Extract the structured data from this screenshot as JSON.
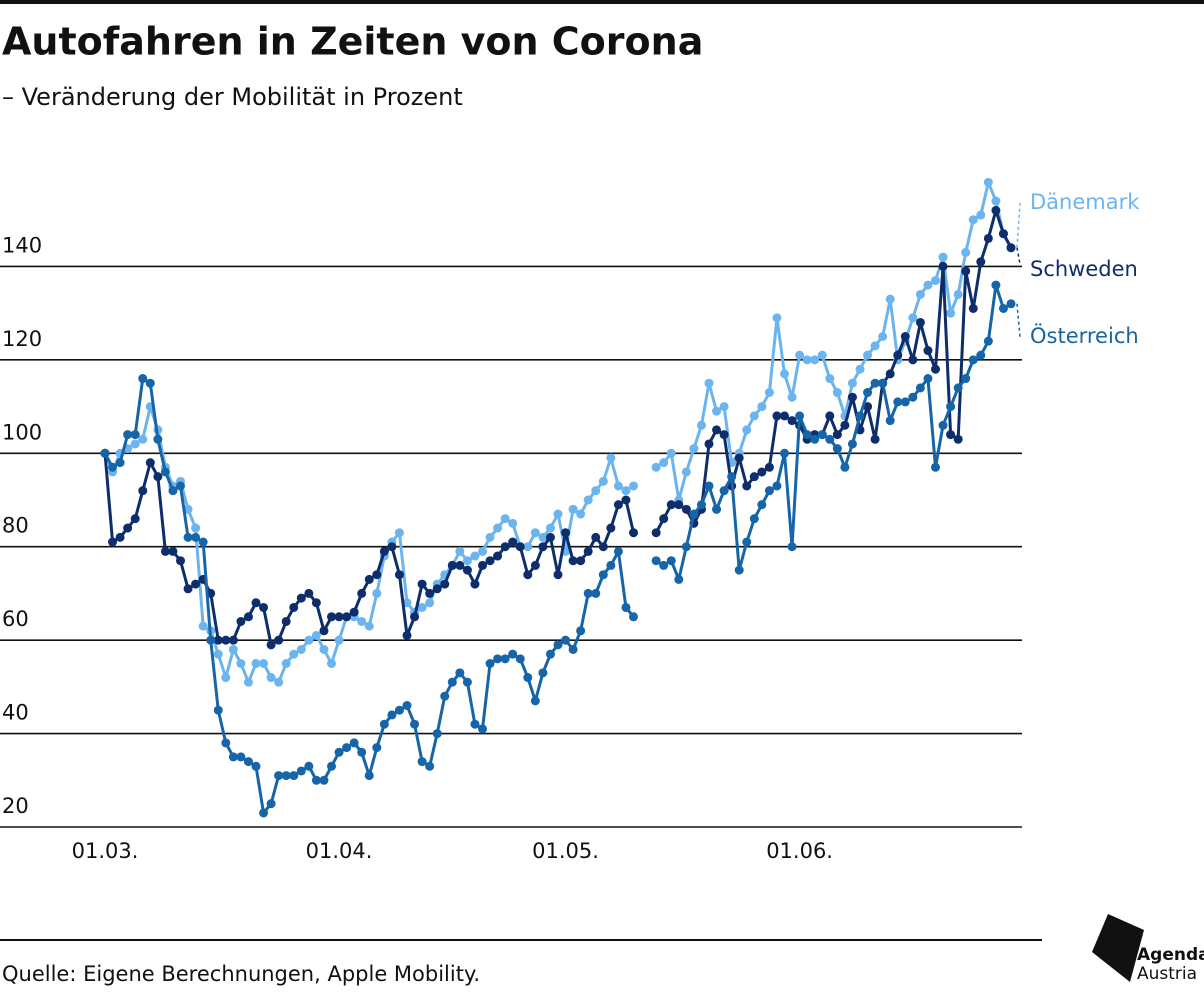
{
  "chart_data": {
    "type": "line",
    "title": "Autofahren in Zeiten von Corona",
    "subtitle": "– Veränderung der Mobilität in Prozent",
    "source": "Quelle: Eigene Berechnungen, Apple Mobility.",
    "logo": [
      "Agenda",
      "Austria"
    ],
    "ylim": [
      20,
      160
    ],
    "yticks": [
      20,
      40,
      60,
      80,
      100,
      120,
      140
    ],
    "grid": true,
    "categories": [
      "01.03.",
      "02.03.",
      "03.03.",
      "04.03.",
      "05.03.",
      "06.03.",
      "07.03.",
      "08.03.",
      "09.03.",
      "10.03.",
      "11.03.",
      "12.03.",
      "13.03.",
      "14.03.",
      "15.03.",
      "16.03.",
      "17.03.",
      "18.03.",
      "19.03.",
      "20.03.",
      "21.03.",
      "22.03.",
      "23.03.",
      "24.03.",
      "25.03.",
      "26.03.",
      "27.03.",
      "28.03.",
      "29.03.",
      "30.03.",
      "31.03.",
      "01.04.",
      "02.04.",
      "03.04.",
      "04.04.",
      "05.04.",
      "06.04.",
      "07.04.",
      "08.04.",
      "09.04.",
      "10.04.",
      "11.04.",
      "12.04.",
      "13.04.",
      "14.04.",
      "15.04.",
      "16.04.",
      "17.04.",
      "18.04.",
      "19.04.",
      "20.04.",
      "21.04.",
      "22.04.",
      "23.04.",
      "24.04.",
      "25.04.",
      "26.04.",
      "27.04.",
      "28.04.",
      "29.04.",
      "30.04.",
      "01.05.",
      "02.05.",
      "03.05.",
      "04.05.",
      "05.05.",
      "06.05.",
      "07.05.",
      "08.05.",
      "09.05.",
      "10.05.",
      "11.05.",
      "12.05.",
      "13.05.",
      "14.05.",
      "15.05.",
      "16.05.",
      "17.05.",
      "18.05.",
      "19.05.",
      "20.05.",
      "21.05.",
      "22.05.",
      "23.05.",
      "24.05.",
      "25.05.",
      "26.05.",
      "27.05.",
      "28.05.",
      "29.05.",
      "30.05.",
      "31.05.",
      "01.06.",
      "02.06.",
      "03.06.",
      "04.06.",
      "05.06.",
      "06.06.",
      "07.06.",
      "08.06.",
      "09.06.",
      "10.06.",
      "11.06.",
      "12.06.",
      "13.06.",
      "14.06.",
      "15.06.",
      "16.06.",
      "17.06.",
      "18.06.",
      "19.06.",
      "20.06.",
      "21.06.",
      "22.06.",
      "23.06.",
      "24.06.",
      "25.06.",
      "26.06.",
      "27.06.",
      "28.06.",
      "29.06."
    ],
    "xticks": [
      "01.03.",
      "01.04.",
      "01.05.",
      "01.06."
    ],
    "series": [
      {
        "name": "Dänemark",
        "color": "#6cb4ee",
        "values": [
          100,
          96,
          100,
          101,
          102,
          103,
          110,
          105,
          97,
          93,
          94,
          88,
          84,
          63,
          62,
          57,
          52,
          58,
          55,
          51,
          55,
          55,
          52,
          51,
          55,
          57,
          58,
          60,
          61,
          58,
          55,
          60,
          65,
          65,
          64,
          63,
          70,
          78,
          81,
          83,
          68,
          66,
          67,
          68,
          72,
          74,
          76,
          79,
          77,
          78,
          79,
          82,
          84,
          86,
          85,
          80,
          80,
          83,
          82,
          84,
          87,
          79,
          88,
          87,
          90,
          92,
          94,
          99,
          93,
          92,
          93,
          null,
          null,
          97,
          98,
          100,
          90,
          96,
          101,
          106,
          115,
          109,
          110,
          98,
          100,
          105,
          108,
          110,
          113,
          129,
          117,
          112,
          121,
          120,
          120,
          121,
          116,
          113,
          108,
          115,
          118,
          121,
          123,
          125,
          133,
          120,
          124,
          129,
          134,
          136,
          137,
          142,
          130,
          134,
          143,
          150,
          151,
          158,
          154,
          147,
          144
        ]
      },
      {
        "name": "Schweden",
        "color": "#0d2d6b",
        "values": [
          100,
          81,
          82,
          84,
          86,
          92,
          98,
          95,
          79,
          79,
          77,
          71,
          72,
          73,
          70,
          60,
          60,
          60,
          64,
          65,
          68,
          67,
          59,
          60,
          64,
          67,
          69,
          70,
          68,
          62,
          65,
          65,
          65,
          66,
          70,
          73,
          74,
          79,
          80,
          74,
          61,
          65,
          72,
          70,
          71,
          72,
          76,
          76,
          75,
          72,
          76,
          77,
          78,
          80,
          81,
          80,
          74,
          76,
          80,
          82,
          74,
          83,
          77,
          77,
          79,
          82,
          80,
          84,
          89,
          90,
          83,
          null,
          null,
          83,
          86,
          89,
          89,
          88,
          85,
          88,
          102,
          105,
          104,
          93,
          99,
          93,
          95,
          96,
          97,
          108,
          108,
          107,
          106,
          103,
          104,
          104,
          108,
          104,
          106,
          112,
          105,
          110,
          103,
          115,
          117,
          121,
          125,
          120,
          128,
          122,
          118,
          140,
          104,
          103,
          139,
          131,
          141,
          146,
          152,
          147,
          144
        ]
      },
      {
        "name": "Österreich",
        "color": "#1565a8",
        "values": [
          100,
          97,
          98,
          104,
          104,
          116,
          115,
          103,
          96,
          92,
          93,
          82,
          82,
          81,
          60,
          45,
          38,
          35,
          35,
          34,
          33,
          23,
          25,
          31,
          31,
          31,
          32,
          33,
          30,
          30,
          33,
          36,
          37,
          38,
          36,
          31,
          37,
          42,
          44,
          45,
          46,
          42,
          34,
          33,
          40,
          48,
          51,
          53,
          51,
          42,
          41,
          55,
          56,
          56,
          57,
          56,
          52,
          47,
          53,
          57,
          59,
          60,
          58,
          62,
          70,
          70,
          74,
          76,
          79,
          67,
          65,
          null,
          null,
          77,
          76,
          77,
          73,
          80,
          87,
          89,
          93,
          88,
          92,
          95,
          75,
          81,
          86,
          89,
          92,
          93,
          100,
          80,
          108,
          104,
          103,
          104,
          103,
          101,
          97,
          102,
          108,
          113,
          115,
          115,
          107,
          111,
          111,
          112,
          114,
          116,
          97,
          106,
          110,
          114,
          116,
          120,
          121,
          124,
          136,
          131,
          132
        ]
      }
    ]
  }
}
